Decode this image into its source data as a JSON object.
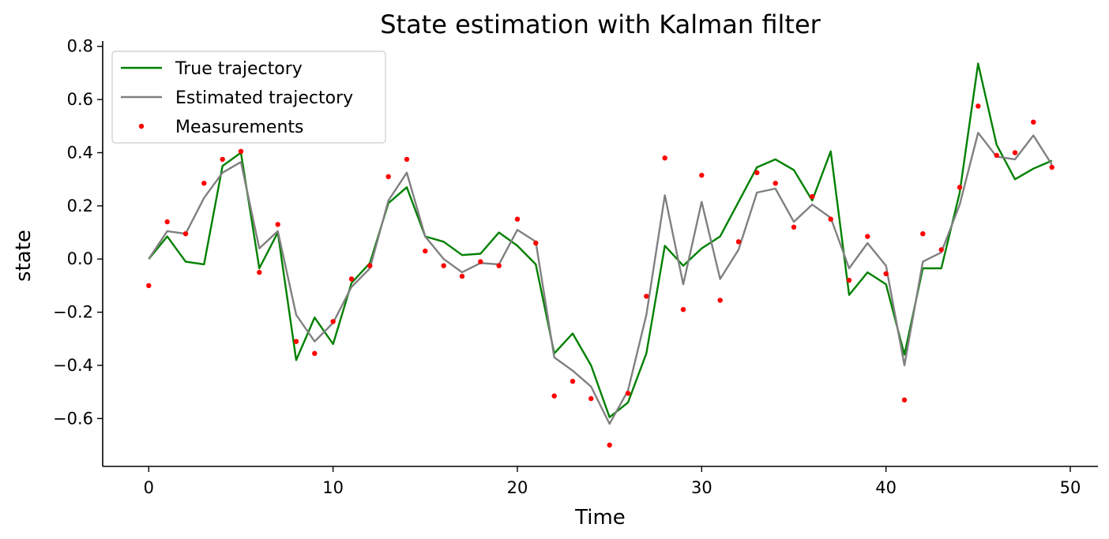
{
  "chart_data": {
    "type": "line",
    "title": "State estimation with Kalman filter",
    "xlabel": "Time",
    "ylabel": "state",
    "xlim": [
      -2.5,
      51.5
    ],
    "ylim": [
      -0.78,
      0.82
    ],
    "xticks": [
      0,
      10,
      20,
      30,
      40,
      50
    ],
    "yticks": [
      -0.6,
      -0.4,
      -0.2,
      0.0,
      0.2,
      0.4,
      0.6,
      0.8
    ],
    "grid": false,
    "legend_position": "top-left",
    "x": [
      0,
      1,
      2,
      3,
      4,
      5,
      6,
      7,
      8,
      9,
      10,
      11,
      12,
      13,
      14,
      15,
      16,
      17,
      18,
      19,
      20,
      21,
      22,
      23,
      24,
      25,
      26,
      27,
      28,
      29,
      30,
      31,
      32,
      33,
      34,
      35,
      36,
      37,
      38,
      39,
      40,
      41,
      42,
      43,
      44,
      45,
      46,
      47,
      48,
      49
    ],
    "series": [
      {
        "name": "True trajectory",
        "kind": "line",
        "color": "#008000",
        "values": [
          0.0,
          0.085,
          -0.01,
          -0.02,
          0.35,
          0.4,
          -0.035,
          0.1,
          -0.38,
          -0.22,
          -0.32,
          -0.09,
          -0.015,
          0.21,
          0.27,
          0.085,
          0.065,
          0.015,
          0.02,
          0.1,
          0.05,
          -0.02,
          -0.355,
          -0.28,
          -0.4,
          -0.595,
          -0.54,
          -0.355,
          0.05,
          -0.025,
          0.04,
          0.085,
          0.215,
          0.345,
          0.375,
          0.335,
          0.22,
          0.405,
          -0.135,
          -0.05,
          -0.095,
          -0.36,
          -0.035,
          -0.035,
          0.25,
          0.735,
          0.43,
          0.3,
          0.34,
          0.37
        ]
      },
      {
        "name": "Estimated trajectory",
        "kind": "line",
        "color": "#808080",
        "values": [
          0.0,
          0.105,
          0.095,
          0.23,
          0.325,
          0.365,
          0.04,
          0.105,
          -0.21,
          -0.31,
          -0.24,
          -0.105,
          -0.035,
          0.22,
          0.325,
          0.085,
          0.0,
          -0.05,
          -0.015,
          -0.02,
          0.11,
          0.065,
          -0.37,
          -0.42,
          -0.48,
          -0.62,
          -0.495,
          -0.21,
          0.24,
          -0.095,
          0.215,
          -0.075,
          0.035,
          0.25,
          0.265,
          0.14,
          0.205,
          0.155,
          -0.035,
          0.06,
          -0.025,
          -0.4,
          -0.01,
          0.025,
          0.205,
          0.475,
          0.385,
          0.375,
          0.465,
          0.355
        ]
      },
      {
        "name": "Measurements",
        "kind": "scatter",
        "color": "#ff0000",
        "values": [
          -0.1,
          0.14,
          0.095,
          0.285,
          0.375,
          0.405,
          -0.05,
          0.13,
          -0.31,
          -0.355,
          -0.235,
          -0.075,
          -0.025,
          0.31,
          0.375,
          0.03,
          -0.025,
          -0.065,
          -0.01,
          -0.025,
          0.15,
          0.06,
          -0.515,
          -0.46,
          -0.525,
          -0.7,
          -0.505,
          -0.14,
          0.38,
          -0.19,
          0.315,
          -0.155,
          0.065,
          0.325,
          0.285,
          0.12,
          0.235,
          0.15,
          -0.08,
          0.085,
          -0.055,
          -0.53,
          0.095,
          0.035,
          0.27,
          0.575,
          0.39,
          0.4,
          0.515,
          0.345
        ]
      }
    ]
  }
}
